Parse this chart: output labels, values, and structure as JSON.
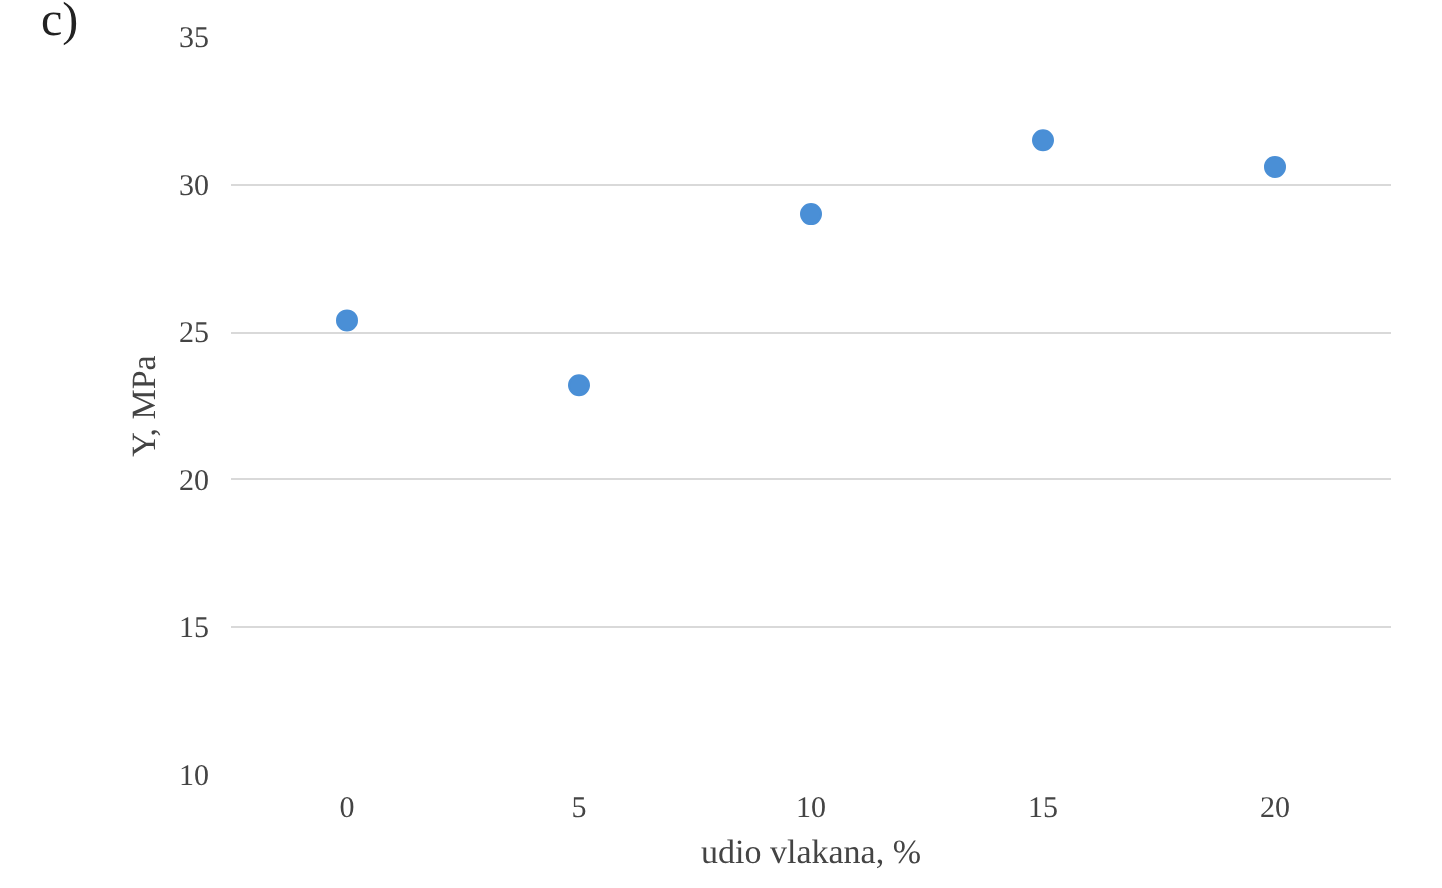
{
  "chart_data": {
    "type": "scatter",
    "xlabel": "udio vlakana, %",
    "ylabel": "Y, MPa",
    "annotations": [
      "c)"
    ],
    "x": [
      0,
      5,
      10,
      15,
      20
    ],
    "series": [
      {
        "color": "#4a8fd6",
        "values": [
          25.4,
          23.2,
          29.0,
          31.5,
          30.6
        ]
      }
    ],
    "xlim": [
      -2.5,
      22.5
    ],
    "xticks": [
      0,
      5,
      10,
      15,
      20
    ],
    "ylim": [
      10,
      35
    ],
    "yticks": [
      10,
      15,
      20,
      25,
      30,
      35
    ],
    "grid": "y",
    "marker": "circle"
  }
}
